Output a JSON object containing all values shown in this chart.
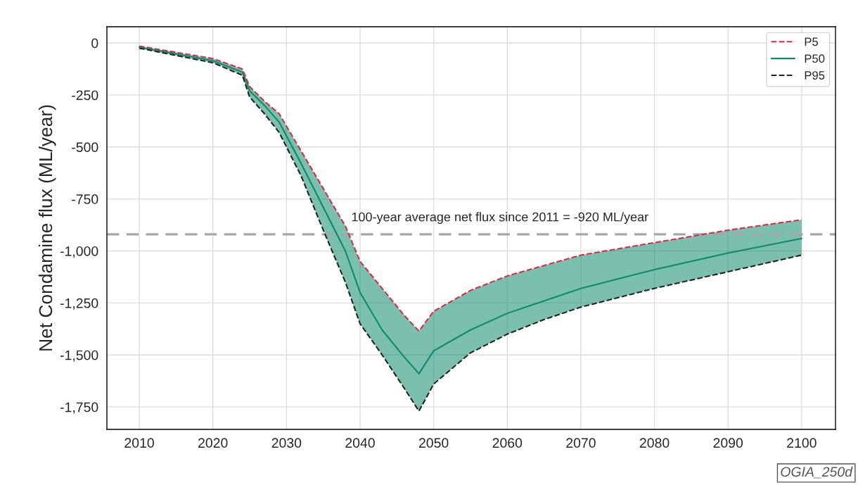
{
  "chart_data": {
    "type": "line",
    "ylabel": "Net Condamine flux (ML/year)",
    "x": [
      2010,
      2020,
      2024,
      2025,
      2027,
      2029,
      2032,
      2035,
      2038,
      2040,
      2043,
      2046,
      2048,
      2050,
      2055,
      2060,
      2065,
      2070,
      2080,
      2090,
      2100
    ],
    "series": [
      {
        "name": "P5",
        "color": "#d62d45",
        "line_style": "dashed",
        "values": [
          -15,
          -75,
          -125,
          -210,
          -280,
          -340,
          -520,
          -700,
          -880,
          -1050,
          -1180,
          -1310,
          -1385,
          -1290,
          -1190,
          -1120,
          -1070,
          -1020,
          -960,
          -900,
          -850
        ]
      },
      {
        "name": "P50",
        "color": "#0e8a6c",
        "line_style": "solid",
        "values": [
          -20,
          -85,
          -140,
          -230,
          -300,
          -380,
          -580,
          -790,
          -1000,
          -1200,
          -1380,
          -1510,
          -1590,
          -1480,
          -1380,
          -1300,
          -1240,
          -1180,
          -1090,
          -1010,
          -940
        ],
        "lower": [
          -25,
          -95,
          -155,
          -260,
          -340,
          -430,
          -640,
          -900,
          -1150,
          -1350,
          -1500,
          -1660,
          -1770,
          -1640,
          -1490,
          -1400,
          -1330,
          -1270,
          -1180,
          -1100,
          -1020
        ],
        "upper": [
          -15,
          -75,
          -125,
          -210,
          -280,
          -340,
          -520,
          -700,
          -880,
          -1050,
          -1180,
          -1310,
          -1385,
          -1290,
          -1190,
          -1120,
          -1070,
          -1020,
          -960,
          -900,
          -850
        ]
      },
      {
        "name": "P95",
        "color": "#222222",
        "line_style": "dashed",
        "values": [
          -25,
          -95,
          -155,
          -260,
          -340,
          -430,
          -640,
          -900,
          -1150,
          -1350,
          -1500,
          -1660,
          -1770,
          -1640,
          -1490,
          -1400,
          -1330,
          -1270,
          -1180,
          -1100,
          -1020
        ]
      }
    ],
    "xlim": [
      2005.6,
      2104.6
    ],
    "xticks": [
      2010,
      2020,
      2030,
      2040,
      2050,
      2060,
      2070,
      2080,
      2090,
      2100
    ],
    "ylim": [
      -1858,
      78
    ],
    "yticks": [
      {
        "value": 0,
        "label": "0"
      },
      {
        "value": -250,
        "label": "-250"
      },
      {
        "value": -500,
        "label": "-500"
      },
      {
        "value": -750,
        "label": "-750"
      },
      {
        "value": -1000,
        "label": "-1,000"
      },
      {
        "value": -1250,
        "label": "-1,250"
      },
      {
        "value": -1500,
        "label": "-1,500"
      },
      {
        "value": -1750,
        "label": "-1,750"
      }
    ],
    "ref_lines": [
      {
        "axis": "y",
        "value": -920,
        "label": "100-year average net flux since 2011 = -920 ML/year",
        "color": "#a6a6a6",
        "line_style": "dashed"
      }
    ],
    "annotations": [
      "OGIA_250d"
    ],
    "grid": true,
    "legend": "top right"
  }
}
